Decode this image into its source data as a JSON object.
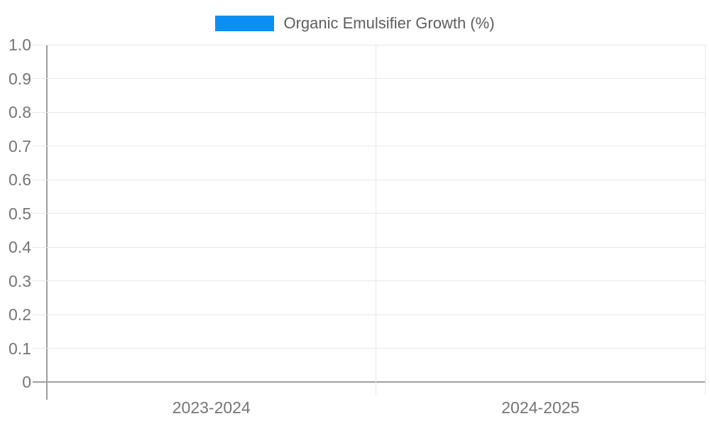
{
  "legend": {
    "label": "Organic Emulsifier Growth (%)"
  },
  "colors": {
    "bar": "#0a90f5",
    "gridline": "#e7e7e7",
    "axis_line": "#9e9e9e",
    "tick_text": "#757575",
    "legend_text": "#5d5e60"
  },
  "chart_data": {
    "type": "bar",
    "title": "Organic Emulsifier Growth (%)",
    "categories": [
      "2023-2024",
      "2024-2025"
    ],
    "series": [
      {
        "name": "Organic Emulsifier Growth (%)",
        "color": "#0a90f5",
        "values": [
          0,
          0
        ]
      }
    ],
    "xlabel": "",
    "ylabel": "",
    "ylim": [
      0,
      1
    ],
    "ytick_labels": [
      "0",
      "0.1",
      "0.2",
      "0.3",
      "0.4",
      "0.5",
      "0.6",
      "0.7",
      "0.8",
      "0.9",
      "1.0"
    ],
    "grid": true,
    "legend_position": "top-center"
  }
}
